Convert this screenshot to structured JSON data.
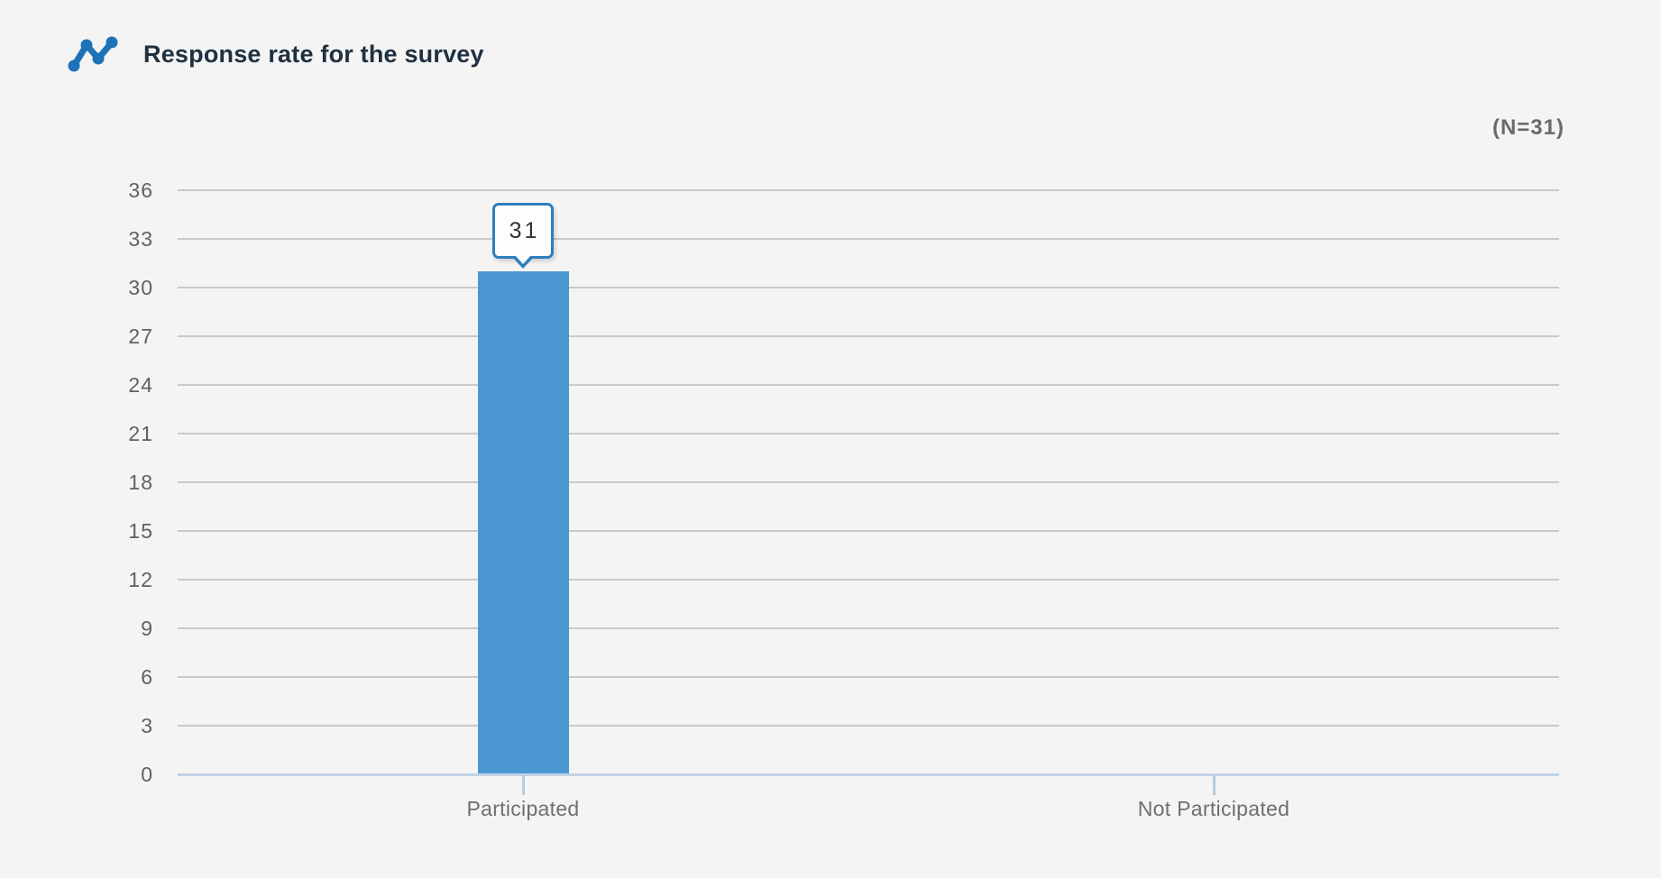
{
  "header": {
    "title": "Response rate for the survey",
    "icon": "line-chart-icon"
  },
  "chart": {
    "n_label": "(N=31)"
  },
  "chart_data": {
    "type": "bar",
    "title": "Response rate for the survey",
    "annotation": "(N=31)",
    "categories": [
      "Participated",
      "Not Participated"
    ],
    "values": [
      31,
      0
    ],
    "data_labels": [
      "31",
      ""
    ],
    "xlabel": "",
    "ylabel": "",
    "ylim": [
      0,
      36
    ],
    "ytick_step": 3,
    "yticks": [
      0,
      3,
      6,
      9,
      12,
      15,
      18,
      21,
      24,
      27,
      30,
      33,
      36
    ],
    "grid": true,
    "legend_position": "none",
    "colors": {
      "bar": "#4a97d2",
      "tooltip_border": "#2e7fbd",
      "icon": "#1d72b8",
      "gridline": "#c9c9c9",
      "baseline": "#c3d2e5",
      "tick": "#b8cbe0"
    }
  }
}
